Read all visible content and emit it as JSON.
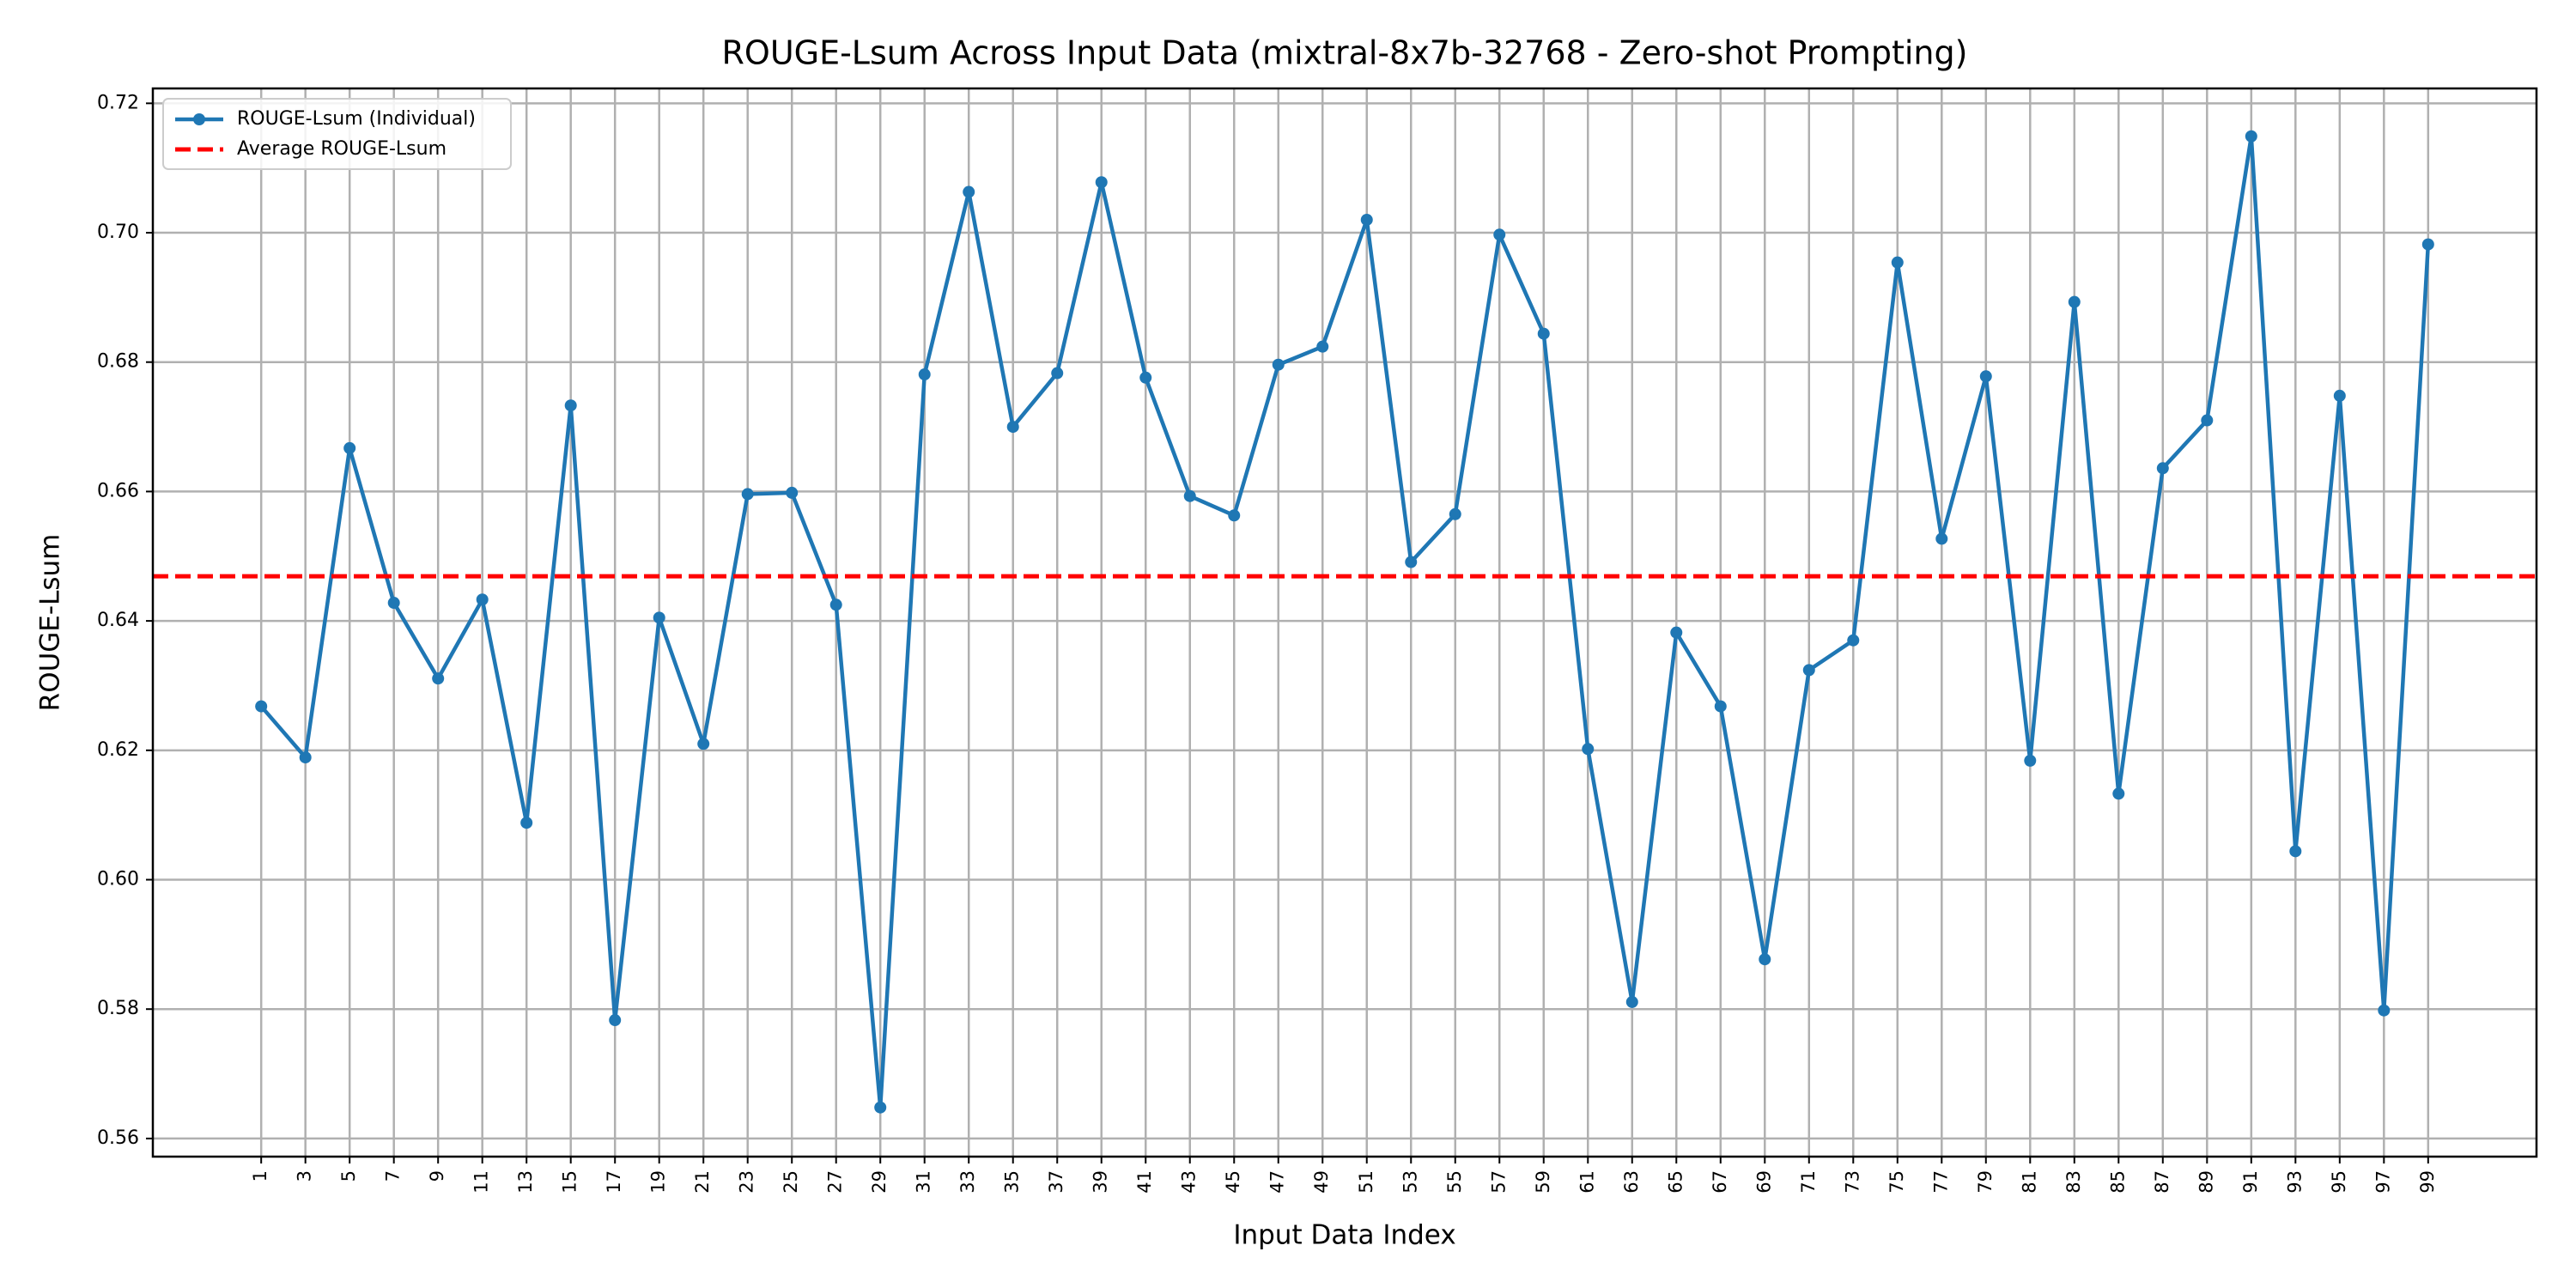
{
  "chart_data": {
    "type": "line",
    "title": "ROUGE-Lsum Across Input Data (mixtral-8x7b-32768 - Zero-shot Prompting)",
    "x_label": "Input Data Index",
    "y_label": "ROUGE-Lsum",
    "x": [
      1,
      3,
      5,
      7,
      9,
      11,
      13,
      15,
      17,
      19,
      21,
      23,
      25,
      27,
      29,
      31,
      33,
      35,
      37,
      39,
      41,
      43,
      45,
      47,
      49,
      51,
      53,
      55,
      57,
      59,
      61,
      63,
      65,
      67,
      69,
      71,
      73,
      75,
      77,
      79,
      81,
      83,
      85,
      87,
      89,
      91,
      93,
      95,
      97,
      99
    ],
    "series": [
      {
        "name": "ROUGE-Lsum (Individual)",
        "color": "#1f77b4",
        "values": [
          0.6268,
          0.6189,
          0.6667,
          0.6428,
          0.6311,
          0.6433,
          0.6088,
          0.6733,
          0.5783,
          0.6405,
          0.621,
          0.6596,
          0.6598,
          0.6425,
          0.5648,
          0.6781,
          0.7063,
          0.67,
          0.6783,
          0.7078,
          0.6776,
          0.6593,
          0.6563,
          0.6796,
          0.6824,
          0.702,
          0.6491,
          0.6565,
          0.6997,
          0.6844,
          0.6202,
          0.5811,
          0.6382,
          0.6268,
          0.5877,
          0.6324,
          0.637,
          0.6954,
          0.6527,
          0.6778,
          0.6184,
          0.6893,
          0.6133,
          0.6636,
          0.671,
          0.7149,
          0.6044,
          0.6748,
          0.5798,
          0.6982
        ]
      }
    ],
    "average": {
      "name": "Average ROUGE-Lsum",
      "color": "#ff0000",
      "value": 0.6469
    },
    "xlim": [
      -3.9,
      103.9
    ],
    "ylim": [
      0.5572,
      0.7223
    ],
    "xticks": [
      1,
      3,
      5,
      7,
      9,
      11,
      13,
      15,
      17,
      19,
      21,
      23,
      25,
      27,
      29,
      31,
      33,
      35,
      37,
      39,
      41,
      43,
      45,
      47,
      49,
      51,
      53,
      55,
      57,
      59,
      61,
      63,
      65,
      67,
      69,
      71,
      73,
      75,
      77,
      79,
      81,
      83,
      85,
      87,
      89,
      91,
      93,
      95,
      97,
      99
    ],
    "yticks": [
      {
        "value": 0.56,
        "label": "0.56"
      },
      {
        "value": 0.58,
        "label": "0.58"
      },
      {
        "value": 0.6,
        "label": "0.60"
      },
      {
        "value": 0.62,
        "label": "0.62"
      },
      {
        "value": 0.64,
        "label": "0.64"
      },
      {
        "value": 0.66,
        "label": "0.66"
      },
      {
        "value": 0.68,
        "label": "0.68"
      },
      {
        "value": 0.7,
        "label": "0.70"
      },
      {
        "value": 0.72,
        "label": "0.72"
      }
    ],
    "grid": true,
    "legend": "upper left"
  }
}
